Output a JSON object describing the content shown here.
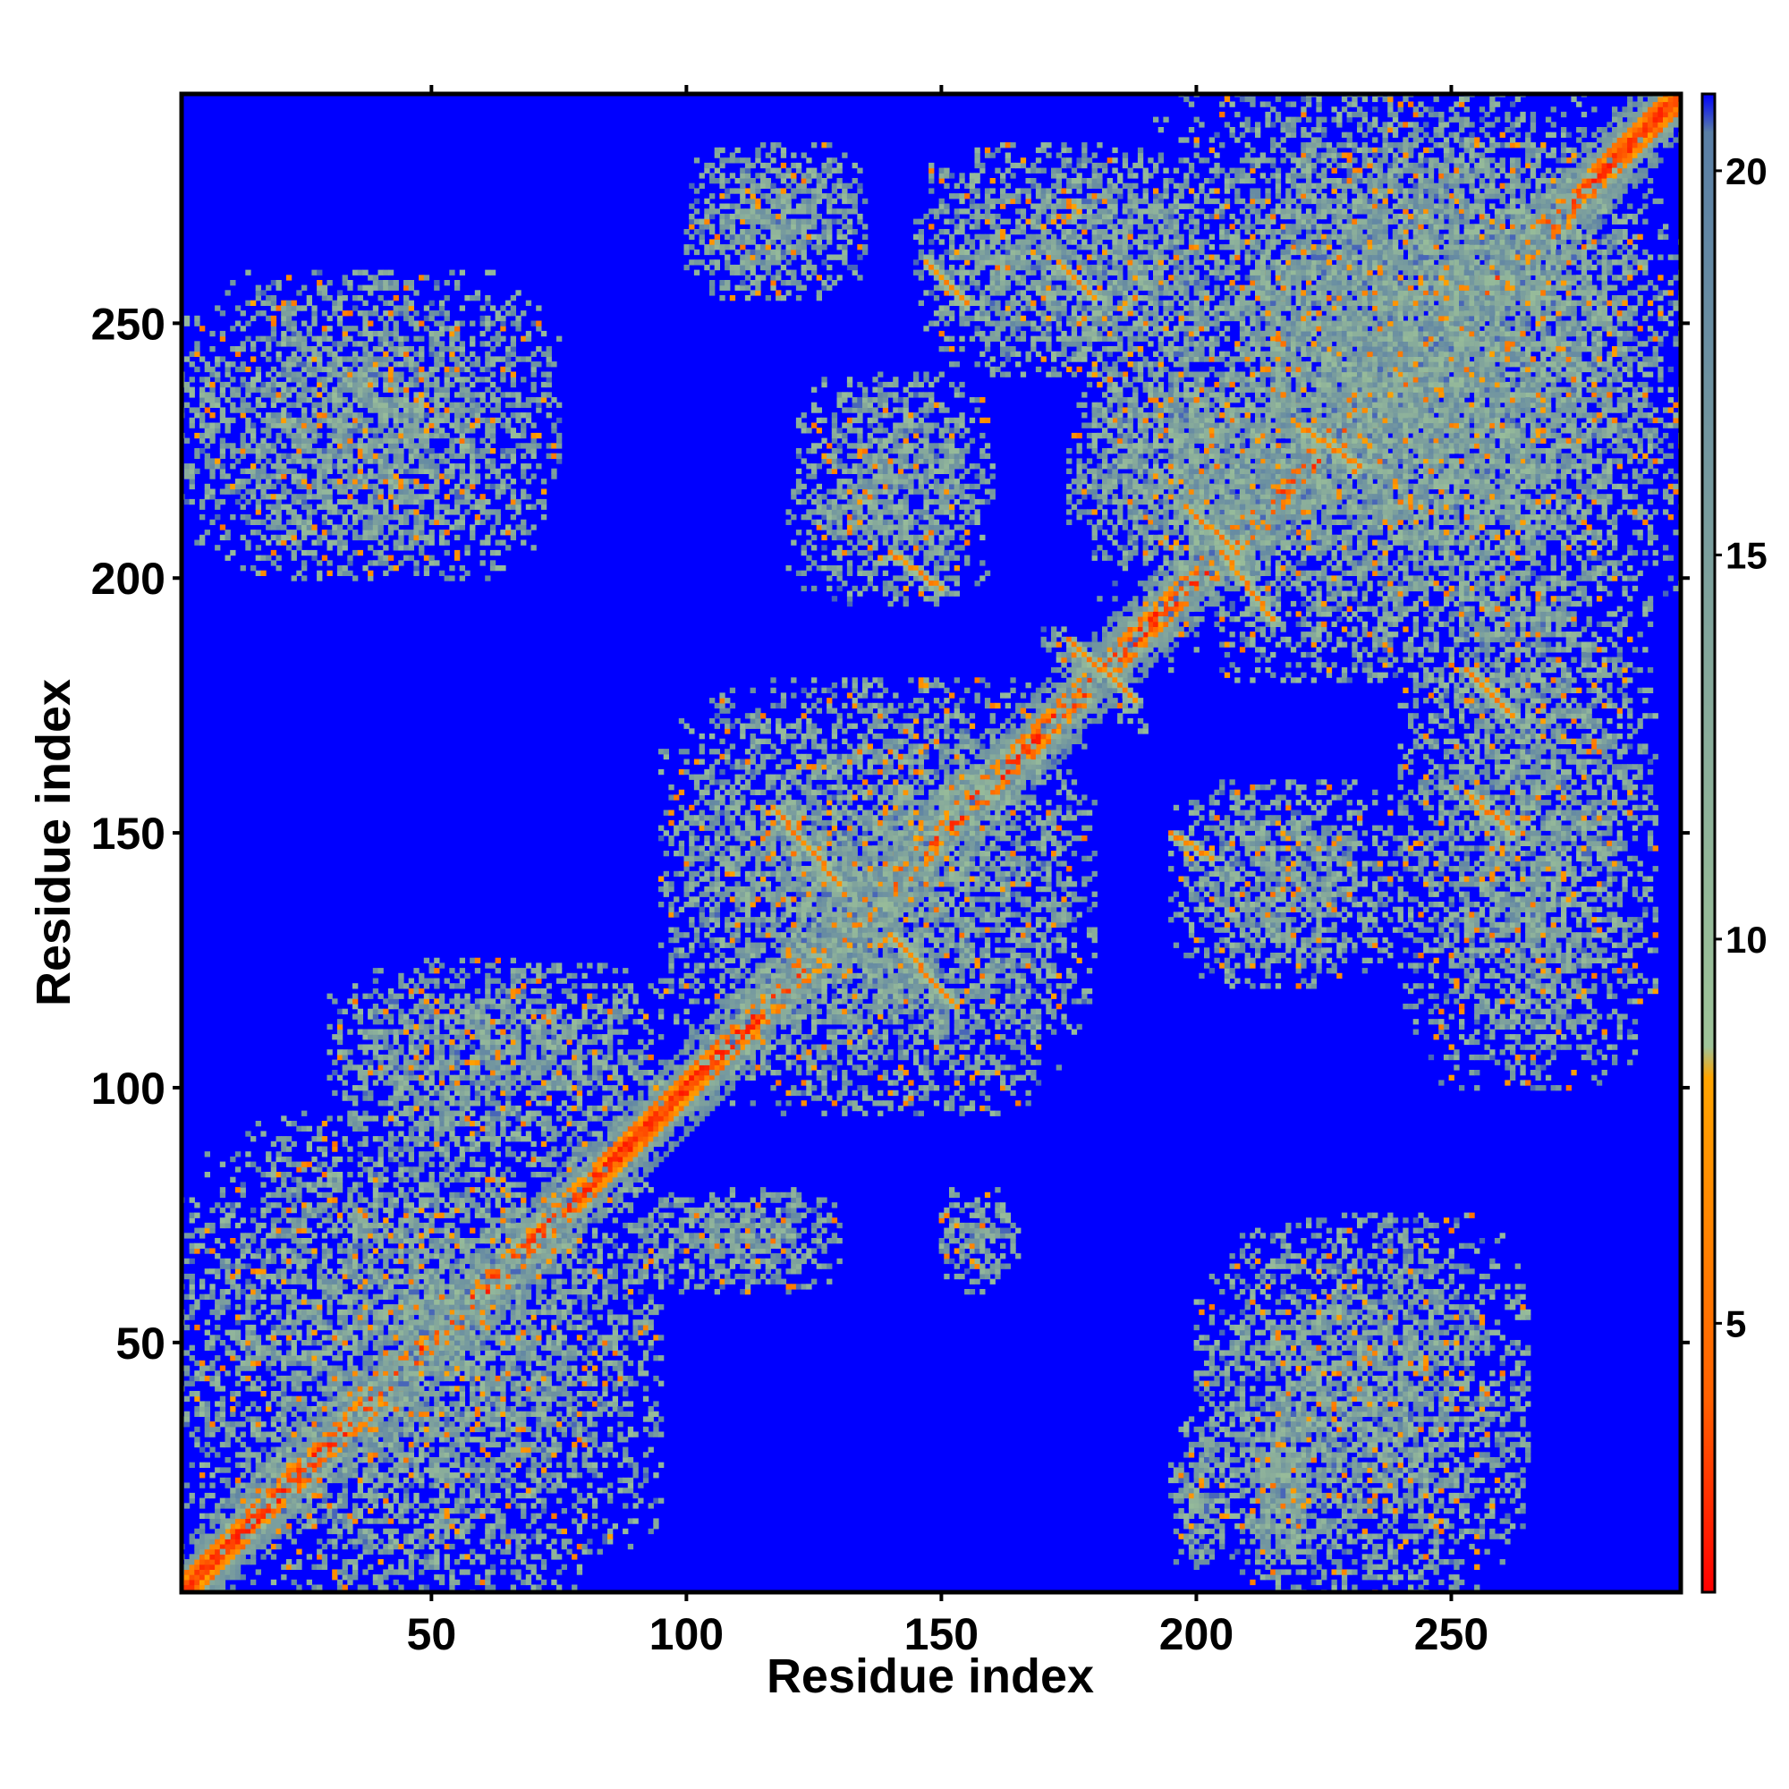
{
  "chart_data": {
    "type": "heatmap",
    "title": "",
    "xlabel": "Residue index",
    "ylabel": "Residue index",
    "xlim": [
      1,
      295
    ],
    "ylim": [
      1,
      295
    ],
    "x_ticks": [
      50,
      100,
      150,
      200,
      250
    ],
    "y_ticks": [
      50,
      100,
      150,
      200,
      250
    ],
    "x_tick_labels": [
      "50",
      "100",
      "150",
      "200",
      "250"
    ],
    "y_tick_labels": [
      "50",
      "100",
      "150",
      "200",
      "250"
    ],
    "colorbar": {
      "range": [
        1.5,
        21
      ],
      "ticks": [
        5,
        10,
        15,
        20
      ],
      "tick_labels": [
        "5",
        "10",
        "15",
        "20"
      ],
      "colors": [
        {
          "value": 1.5,
          "color": "#ff0000"
        },
        {
          "value": 4.0,
          "color": "#ff6000"
        },
        {
          "value": 8.2,
          "color": "#ffa500"
        },
        {
          "value": 8.6,
          "color": "#9fc49a"
        },
        {
          "value": 13.5,
          "color": "#85a89b"
        },
        {
          "value": 20.5,
          "color": "#5a7fa6"
        },
        {
          "value": 21,
          "color": "#0000ff"
        }
      ]
    },
    "background_color": "#0000ff",
    "diagonal_band": {
      "start": 1,
      "end": 295
    },
    "contact_regions": [
      {
        "x": [
          1,
          95
        ],
        "y": [
          1,
          95
        ],
        "level": "near-diagonal"
      },
      {
        "x": [
          95,
          180
        ],
        "y": [
          95,
          180
        ],
        "level": "near-diagonal"
      },
      {
        "x": [
          180,
          295
        ],
        "y": [
          180,
          295
        ],
        "level": "near-diagonal"
      },
      {
        "x": [
          115,
          150
        ],
        "y": [
          115,
          155
        ],
        "cross": true
      },
      {
        "x": [
          170,
          190
        ],
        "y": [
          170,
          190
        ],
        "cross": true
      },
      {
        "x": [
          195,
          215
        ],
        "y": [
          195,
          215
        ],
        "cross": true
      },
      {
        "x": [
          250,
          265
        ],
        "y": [
          250,
          265
        ],
        "cross": true
      },
      {
        "x": [
          1,
          75
        ],
        "y": [
          200,
          260
        ]
      },
      {
        "x": [
          200,
          265
        ],
        "y": [
          1,
          75
        ]
      },
      {
        "x": [
          100,
          135
        ],
        "y": [
          255,
          285
        ]
      },
      {
        "x": [
          145,
          200
        ],
        "y": [
          240,
          285
        ]
      },
      {
        "x": [
          210,
          285
        ],
        "y": [
          205,
          285
        ]
      },
      {
        "x": [
          120,
          160
        ],
        "y": [
          195,
          240
        ]
      },
      {
        "x": [
          175,
          215
        ],
        "y": [
          205,
          240
        ]
      },
      {
        "x": [
          195,
          240
        ],
        "y": [
          120,
          160
        ]
      },
      {
        "x": [
          240,
          290
        ],
        "y": [
          100,
          200
        ]
      },
      {
        "x": [
          30,
          95
        ],
        "y": [
          90,
          125
        ]
      },
      {
        "x": [
          90,
          130
        ],
        "y": [
          60,
          80
        ]
      },
      {
        "x": [
          150,
          165
        ],
        "y": [
          60,
          80
        ]
      },
      {
        "x": [
          210,
          225
        ],
        "y": [
          5,
          40
        ]
      },
      {
        "x": [
          195,
          205
        ],
        "y": [
          5,
          35
        ]
      }
    ],
    "streaks": [
      {
        "x": [
          147,
          155
        ],
        "y": [
          262,
          254
        ]
      },
      {
        "x": [
          173,
          180
        ],
        "y": [
          262,
          255
        ]
      },
      {
        "x": [
          117,
          130
        ],
        "y": [
          155,
          140
        ]
      },
      {
        "x": [
          140,
          152
        ],
        "y": [
          130,
          117
        ]
      },
      {
        "x": [
          198,
          208
        ],
        "y": [
          214,
          205
        ]
      },
      {
        "x": [
          205,
          215
        ],
        "y": [
          205,
          192
        ]
      },
      {
        "x": [
          175,
          188
        ],
        "y": [
          188,
          176
        ]
      },
      {
        "x": [
          253,
          262
        ],
        "y": [
          182,
          173
        ]
      },
      {
        "x": [
          253,
          262
        ],
        "y": [
          158,
          150
        ]
      },
      {
        "x": [
          140,
          150
        ],
        "y": [
          205,
          198
        ]
      },
      {
        "x": [
          195,
          203
        ],
        "y": [
          150,
          145
        ]
      },
      {
        "x": [
          220,
          232
        ],
        "y": [
          230,
          222
        ]
      }
    ]
  }
}
